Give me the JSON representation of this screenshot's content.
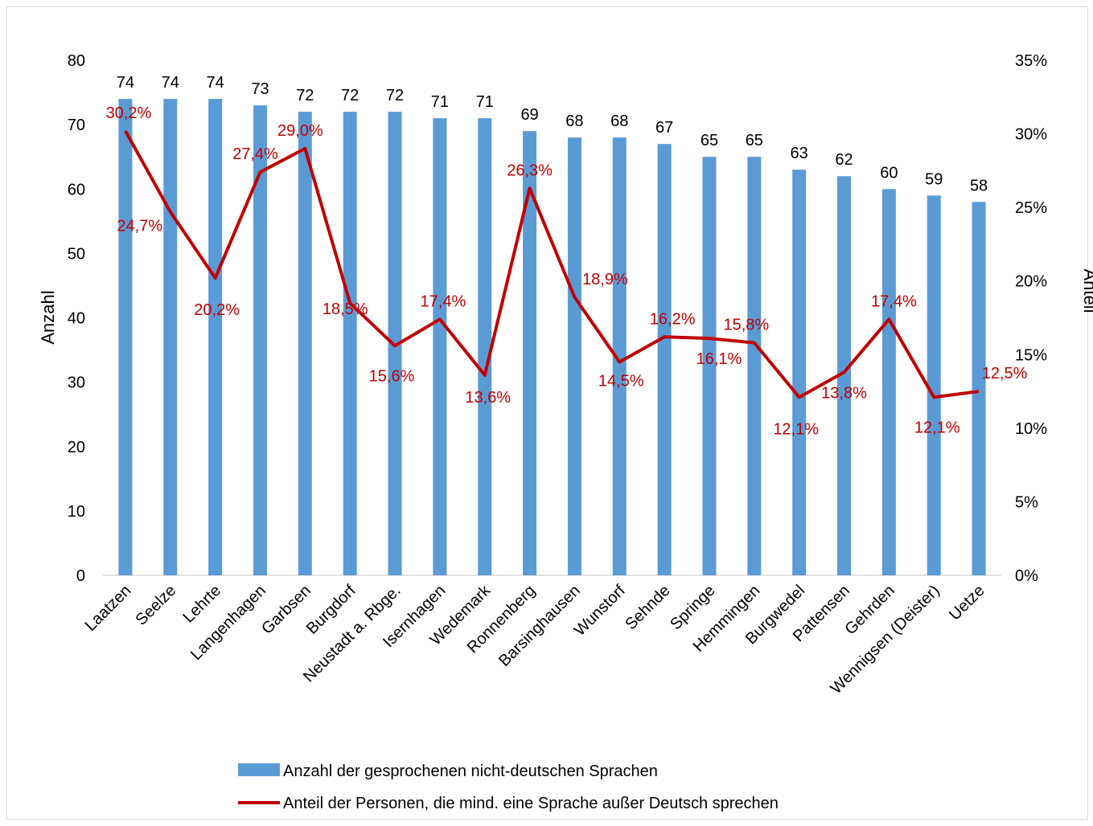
{
  "chart_data": {
    "type": "bar",
    "categories": [
      "Laatzen",
      "Seelze",
      "Lehrte",
      "Langenhagen",
      "Garbsen",
      "Burgdorf",
      "Neustadt a. Rbge.",
      "Isernhagen",
      "Wedemark",
      "Ronnenberg",
      "Barsinghausen",
      "Wunstorf",
      "Sehnde",
      "Springe",
      "Hemmingen",
      "Burgwedel",
      "Pattensen",
      "Gehrden",
      "Wennigsen (Deister)",
      "Uetze"
    ],
    "series": [
      {
        "name": "Anzahl der gesprochenen nicht-deutschen Sprachen",
        "type": "bar",
        "axis": "left",
        "color": "#5b9bd5",
        "values": [
          74,
          74,
          74,
          73,
          72,
          72,
          72,
          71,
          71,
          69,
          68,
          68,
          67,
          65,
          65,
          63,
          62,
          60,
          59,
          58
        ],
        "labels": [
          "74",
          "74",
          "74",
          "73",
          "72",
          "72",
          "72",
          "71",
          "71",
          "69",
          "68",
          "68",
          "67",
          "65",
          "65",
          "63",
          "62",
          "60",
          "59",
          "58"
        ]
      },
      {
        "name": "Anteil der Personen, die mind. eine Sprache außer Deutsch sprechen",
        "type": "line",
        "axis": "right",
        "color": "#c00000",
        "values": [
          30.2,
          24.7,
          20.2,
          27.4,
          29.0,
          18.5,
          15.6,
          17.4,
          13.6,
          26.3,
          18.9,
          14.5,
          16.2,
          16.1,
          15.8,
          12.1,
          13.8,
          17.4,
          12.1,
          12.5
        ],
        "labels": [
          "30,2%",
          "24,7%",
          "20,2%",
          "27,4%",
          "29,0%",
          "18,5%",
          "15,6%",
          "17,4%",
          "13,6%",
          "26,3%",
          "18,9%",
          "14,5%",
          "16,2%",
          "16,1%",
          "15,8%",
          "12,1%",
          "13,8%",
          "17,4%",
          "12,1%",
          "12,5%"
        ]
      }
    ],
    "ylabel": "Anzahl",
    "y2label": "Anteil",
    "ylim": [
      0,
      80
    ],
    "y2lim": [
      0,
      35
    ],
    "yticks": [
      "0",
      "10",
      "20",
      "30",
      "40",
      "50",
      "60",
      "70",
      "80"
    ],
    "y2ticks": [
      "0%",
      "5%",
      "10%",
      "15%",
      "20%",
      "25%",
      "30%",
      "35%"
    ],
    "grid": false,
    "legend_position": "bottom"
  }
}
